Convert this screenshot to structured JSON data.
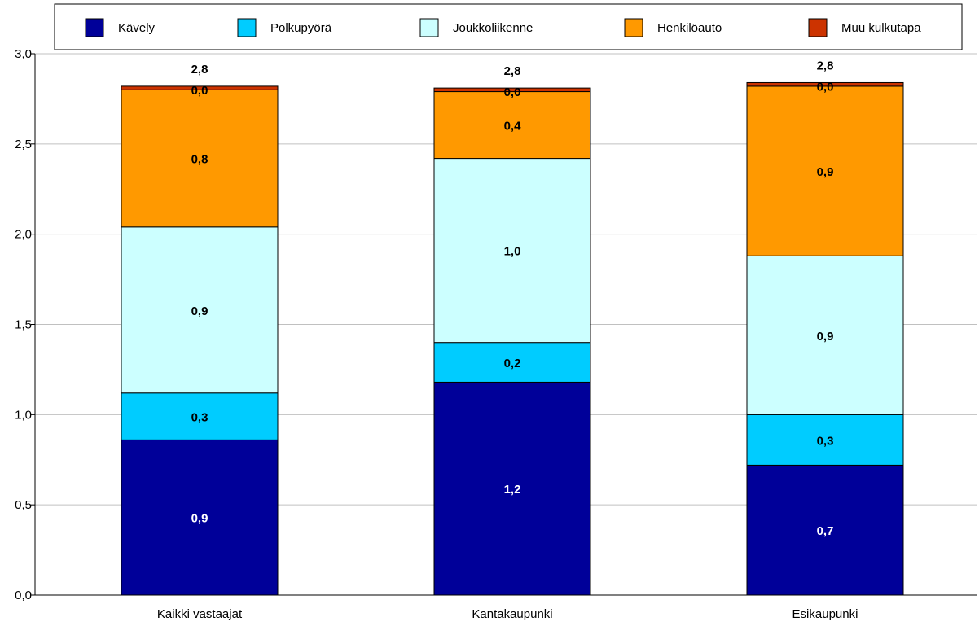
{
  "chart_data": {
    "type": "bar",
    "stacked": true,
    "categories": [
      "Kaikki vastaajat",
      "Kantakaupunki",
      "Esikaupunki"
    ],
    "series": [
      {
        "name": "Kävely",
        "color": "#000099",
        "values": [
          0.86,
          1.18,
          0.72
        ],
        "labels": [
          "0,9",
          "1,2",
          "0,7"
        ],
        "label_color": "#ffffff"
      },
      {
        "name": "Polkupyörä",
        "color": "#00ccff",
        "values": [
          0.26,
          0.22,
          0.28
        ],
        "labels": [
          "0,3",
          "0,2",
          "0,3"
        ],
        "label_color": "#000000"
      },
      {
        "name": "Joukkoliikenne",
        "color": "#ccffff",
        "values": [
          0.92,
          1.02,
          0.88
        ],
        "labels": [
          "0,9",
          "1,0",
          "0,9"
        ],
        "label_color": "#000000"
      },
      {
        "name": "Henkilöauto",
        "color": "#ff9900",
        "values": [
          0.76,
          0.37,
          0.94
        ],
        "labels": [
          "0,8",
          "0,4",
          "0,9"
        ],
        "label_color": "#000000"
      },
      {
        "name": "Muu kulkutapa",
        "color": "#cc3300",
        "values": [
          0.02,
          0.02,
          0.02
        ],
        "labels": [
          "0,0",
          "0,0",
          "0,0"
        ],
        "label_color": "#000000"
      }
    ],
    "totals": [
      "2,8",
      "2,8",
      "2,8"
    ],
    "ylim": [
      0,
      3
    ],
    "yticks": [
      0,
      0.5,
      1.0,
      1.5,
      2.0,
      2.5,
      3.0
    ],
    "ytick_labels": [
      "0,0",
      "0,5",
      "1,0",
      "1,5",
      "2,0",
      "2,5",
      "3,0"
    ],
    "grid": true,
    "legend_position": "top"
  }
}
